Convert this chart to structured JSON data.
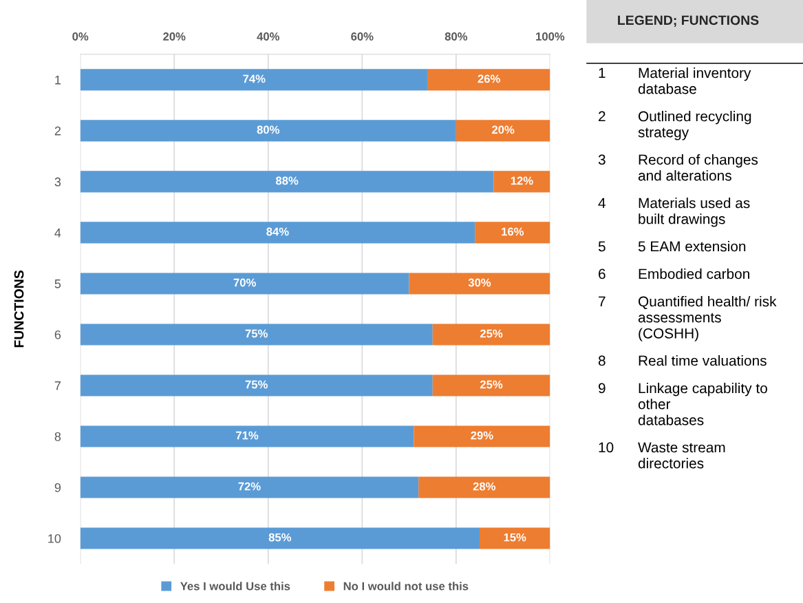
{
  "chart_data": {
    "type": "bar",
    "orientation": "horizontal",
    "stacked": true,
    "categories": [
      "1",
      "2",
      "3",
      "4",
      "5",
      "6",
      "7",
      "8",
      "9",
      "10"
    ],
    "series": [
      {
        "name": "Yes I would Use this",
        "color": "#5b9bd5",
        "values": [
          74,
          80,
          88,
          84,
          70,
          75,
          75,
          71,
          72,
          85
        ],
        "value_labels": [
          "74%",
          "80%",
          "88%",
          "84%",
          "70%",
          "75%",
          "75%",
          "71%",
          "72%",
          "85%"
        ]
      },
      {
        "name": "No I would not use this",
        "color": "#ed7d31",
        "values": [
          26,
          20,
          12,
          16,
          30,
          25,
          25,
          29,
          28,
          15
        ],
        "value_labels": [
          "26%",
          "20%",
          "12%",
          "16%",
          "30%",
          "25%",
          "25%",
          "29%",
          "28%",
          "15%"
        ]
      }
    ],
    "xlim": [
      0,
      100
    ],
    "xticks": [
      {
        "value": 0,
        "label": "0%"
      },
      {
        "value": 20,
        "label": "20%"
      },
      {
        "value": 40,
        "label": "40%"
      },
      {
        "value": 60,
        "label": "60%"
      },
      {
        "value": 80,
        "label": "80%"
      },
      {
        "value": 100,
        "label": "100%"
      }
    ],
    "ylabel": "FUNCTIONS",
    "grid": "x",
    "legend": "bottom",
    "annotations": [
      "LEGEND; FUNCTIONS",
      "1",
      "Material inventory\ndatabase",
      "2",
      "Outlined recycling\nstrategy",
      "3",
      "Record of changes\nand alterations",
      "4",
      "Materials used as\nbuilt drawings",
      "5",
      "5 EAM extension",
      "6",
      "Embodied carbon",
      "7",
      "Quantified health/ risk\nassessments\n(COSHH)",
      "8",
      "Real time valuations",
      "9",
      "Linkage capability to\nother\ndatabases",
      "10",
      "Waste stream\ndirectories"
    ]
  }
}
